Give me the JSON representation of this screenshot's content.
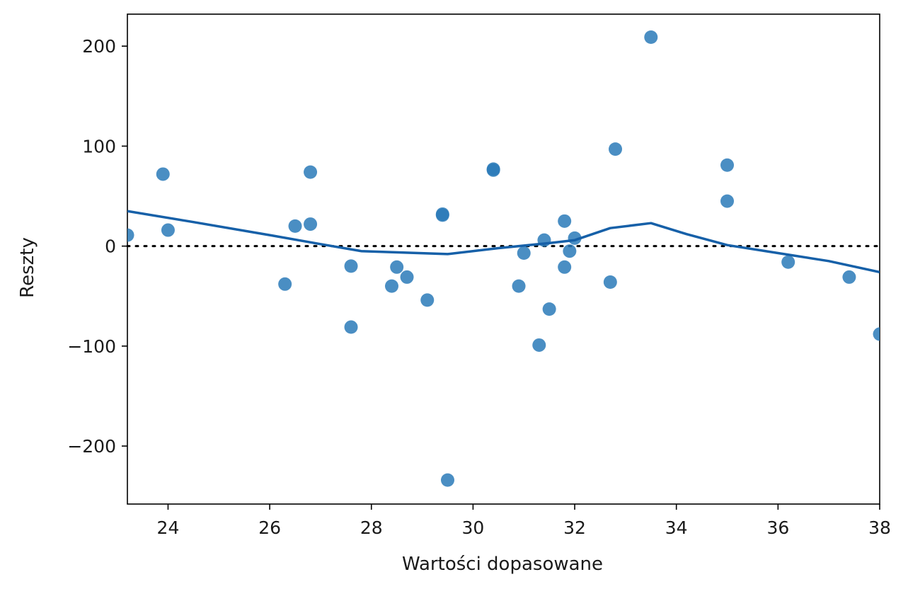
{
  "chart_data": {
    "type": "scatter",
    "title": "",
    "xlabel": "Wartości dopasowane",
    "ylabel": "Reszty",
    "xlim": [
      23.2,
      38.0
    ],
    "ylim": [
      -258,
      232
    ],
    "xticks": [
      24,
      26,
      28,
      30,
      32,
      34,
      36,
      38
    ],
    "yticks": [
      -200,
      -100,
      0,
      100,
      200
    ],
    "ytick_labels": [
      "−200",
      "−100",
      "0",
      "100",
      "200"
    ],
    "grid": false,
    "legend": "none",
    "colors": {
      "points": "#2a7ab9",
      "lowess": "#1660a8",
      "zero_line": "#000000"
    },
    "points": {
      "x": [
        23.2,
        23.9,
        24.0,
        26.3,
        26.5,
        26.8,
        26.8,
        27.6,
        27.6,
        28.4,
        28.5,
        28.7,
        29.1,
        29.4,
        29.4,
        29.5,
        30.4,
        30.4,
        30.9,
        31.0,
        31.3,
        31.4,
        31.5,
        31.8,
        31.8,
        31.9,
        32.0,
        32.7,
        32.8,
        33.5,
        35.0,
        35.0,
        36.2,
        37.4,
        38.0
      ],
      "y": [
        11,
        72,
        16,
        -38,
        20,
        74,
        22,
        -20,
        -81,
        -40,
        -21,
        -31,
        -54,
        31,
        32,
        -234,
        77,
        76,
        -40,
        -7,
        -99,
        6,
        -63,
        -21,
        25,
        -5,
        8,
        -36,
        97,
        209,
        81,
        45,
        -16,
        -31,
        -88
      ]
    },
    "lowess": {
      "x": [
        23.2,
        24.5,
        26.0,
        27.0,
        27.8,
        29.5,
        30.5,
        31.5,
        32.0,
        32.7,
        33.5,
        34.2,
        35.0,
        36.0,
        37.0,
        38.0
      ],
      "y": [
        35,
        24,
        11,
        2,
        -5,
        -8,
        -2,
        3,
        6,
        18,
        23,
        12,
        1,
        -7,
        -15,
        -26
      ]
    },
    "reference_line_y": 0
  }
}
